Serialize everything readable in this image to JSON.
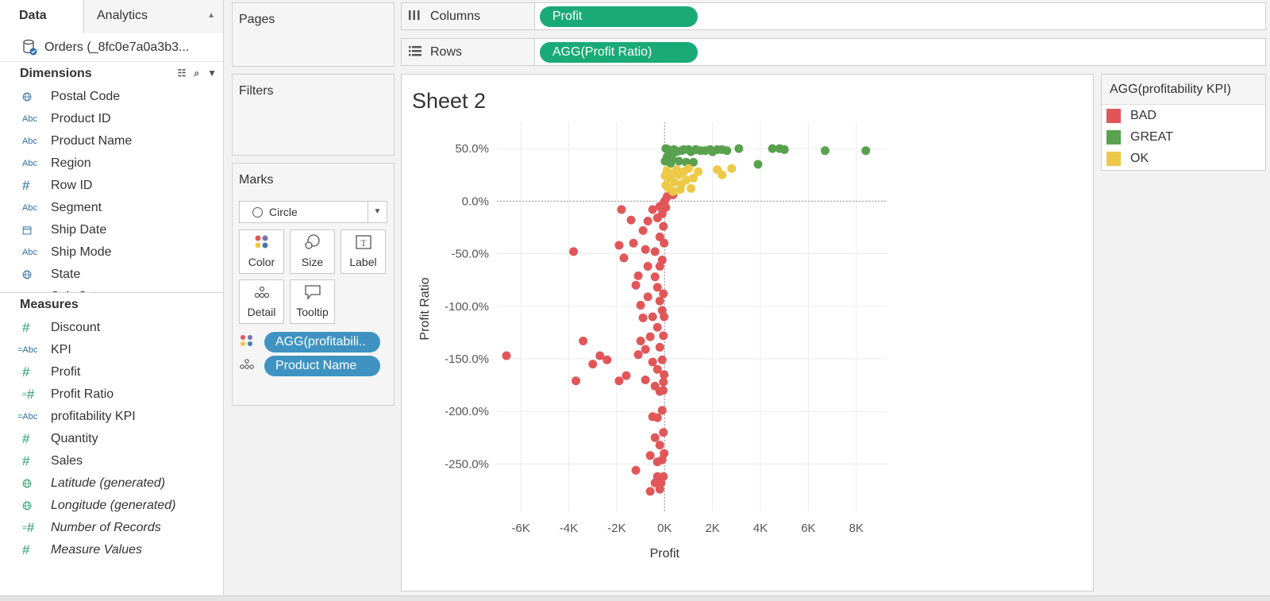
{
  "tabs": {
    "data": "Data",
    "analytics": "Analytics"
  },
  "datasource": {
    "name": "Orders (_8fc0e7a0a3b3..."
  },
  "dimensions": {
    "title": "Dimensions",
    "items": [
      {
        "label": "Postal Code",
        "icon": "globe-icon"
      },
      {
        "label": "Product ID",
        "icon": "abc-icon"
      },
      {
        "label": "Product Name",
        "icon": "abc-icon"
      },
      {
        "label": "Region",
        "icon": "abc-icon"
      },
      {
        "label": "Row ID",
        "icon": "hash-icon"
      },
      {
        "label": "Segment",
        "icon": "abc-icon"
      },
      {
        "label": "Ship Date",
        "icon": "calendar-icon"
      },
      {
        "label": "Ship Mode",
        "icon": "abc-icon"
      },
      {
        "label": "State",
        "icon": "globe-icon"
      },
      {
        "label": "Sub-Category",
        "icon": "abc-icon"
      }
    ]
  },
  "measures": {
    "title": "Measures",
    "items": [
      {
        "label": "Discount",
        "icon": "hash-icon"
      },
      {
        "label": "KPI",
        "icon": "calc-abc-icon"
      },
      {
        "label": "Profit",
        "icon": "hash-icon"
      },
      {
        "label": "Profit Ratio",
        "icon": "calc-hash-icon"
      },
      {
        "label": "profitability KPI",
        "icon": "calc-abc-icon"
      },
      {
        "label": "Quantity",
        "icon": "hash-icon"
      },
      {
        "label": "Sales",
        "icon": "hash-icon"
      },
      {
        "label": "Latitude (generated)",
        "icon": "globe-icon"
      },
      {
        "label": "Longitude (generated)",
        "icon": "globe-icon"
      },
      {
        "label": "Number of Records",
        "icon": "calc-hash-icon"
      },
      {
        "label": "Measure Values",
        "icon": "hash-icon"
      }
    ]
  },
  "shelves": {
    "pages": "Pages",
    "filters": "Filters",
    "marks": "Marks",
    "columns_label": "Columns",
    "rows_label": "Rows",
    "columns_pill": "Profit",
    "rows_pill": "AGG(Profit Ratio)"
  },
  "marks_card": {
    "type": "Circle",
    "buttons": {
      "color": "Color",
      "size": "Size",
      "label": "Label",
      "detail": "Detail",
      "tooltip": "Tooltip"
    },
    "color_pill": "AGG(profitabili..",
    "detail_pill": "Product Name"
  },
  "sheet": {
    "title": "Sheet 2"
  },
  "legend": {
    "title": "AGG(profitability KPI)",
    "items": [
      {
        "label": "BAD",
        "color": "#e15759"
      },
      {
        "label": "GREAT",
        "color": "#59a14f"
      },
      {
        "label": "OK",
        "color": "#edc948"
      }
    ]
  },
  "chart_data": {
    "type": "scatter",
    "xlabel": "Profit",
    "ylabel": "Profit Ratio",
    "x_ticks": [
      "-6K",
      "-4K",
      "-2K",
      "0K",
      "2K",
      "4K",
      "6K",
      "8K"
    ],
    "y_ticks": [
      "50.0%",
      "0.0%",
      "-50.0%",
      "-100.0%",
      "-150.0%",
      "-200.0%",
      "-250.0%"
    ],
    "xlim": [
      -7000,
      9300
    ],
    "ylim": [
      -295,
      75
    ],
    "grid": true,
    "series": [
      {
        "name": "BAD",
        "color": "#e15759",
        "points": [
          [
            -6600,
            -147
          ],
          [
            -3800,
            -48
          ],
          [
            -3700,
            -171
          ],
          [
            -3400,
            -133
          ],
          [
            -3000,
            -155
          ],
          [
            -2700,
            -147
          ],
          [
            -2400,
            -151
          ],
          [
            -1900,
            -171
          ],
          [
            -1800,
            -8
          ],
          [
            -1900,
            -42
          ],
          [
            -1700,
            -54
          ],
          [
            -1600,
            -166
          ],
          [
            -1400,
            -18
          ],
          [
            -1300,
            -40
          ],
          [
            -1200,
            -80
          ],
          [
            -1200,
            -256
          ],
          [
            -1100,
            -146
          ],
          [
            -1100,
            -71
          ],
          [
            -1000,
            -133
          ],
          [
            -1000,
            -99
          ],
          [
            -900,
            -111
          ],
          [
            -900,
            -28
          ],
          [
            -800,
            -46
          ],
          [
            -800,
            -141
          ],
          [
            -800,
            -170
          ],
          [
            -700,
            -91
          ],
          [
            -700,
            -19
          ],
          [
            -700,
            -62
          ],
          [
            -600,
            -129
          ],
          [
            -600,
            -242
          ],
          [
            -600,
            -276
          ],
          [
            -500,
            -153
          ],
          [
            -500,
            -8
          ],
          [
            -500,
            -110
          ],
          [
            -500,
            -205
          ],
          [
            -400,
            -176
          ],
          [
            -400,
            -48
          ],
          [
            -400,
            -225
          ],
          [
            -400,
            -268
          ],
          [
            -400,
            -72
          ],
          [
            -300,
            -16
          ],
          [
            -300,
            -82
          ],
          [
            -300,
            -120
          ],
          [
            -300,
            -160
          ],
          [
            -300,
            -206
          ],
          [
            -300,
            -248
          ],
          [
            -300,
            -262
          ],
          [
            -200,
            -5
          ],
          [
            -200,
            -34
          ],
          [
            -200,
            -62
          ],
          [
            -200,
            -95
          ],
          [
            -200,
            -139
          ],
          [
            -200,
            -181
          ],
          [
            -200,
            -232
          ],
          [
            -200,
            -274
          ],
          [
            -100,
            -12
          ],
          [
            -100,
            -56
          ],
          [
            -100,
            -104
          ],
          [
            -100,
            -151
          ],
          [
            -100,
            -199
          ],
          [
            -100,
            -246
          ],
          [
            -50,
            -24
          ],
          [
            -50,
            -88
          ],
          [
            -50,
            -128
          ],
          [
            -50,
            -172
          ],
          [
            -50,
            -220
          ],
          [
            -50,
            -262
          ],
          [
            -20,
            -40
          ],
          [
            -20,
            -110
          ],
          [
            -20,
            -165
          ],
          [
            -20,
            -240
          ],
          [
            0,
            0
          ],
          [
            50,
            -6
          ],
          [
            100,
            4
          ],
          [
            250,
            8
          ],
          [
            350,
            6
          ],
          [
            -30,
            -2
          ],
          [
            -80,
            -8
          ],
          [
            -60,
            -180
          ],
          [
            -150,
            -268
          ]
        ]
      },
      {
        "name": "GREAT",
        "color": "#59a14f",
        "points": [
          [
            8400,
            48
          ],
          [
            6700,
            48
          ],
          [
            5000,
            49
          ],
          [
            4800,
            50
          ],
          [
            4500,
            50
          ],
          [
            3900,
            35
          ],
          [
            3100,
            50
          ],
          [
            2600,
            48
          ],
          [
            2400,
            49
          ],
          [
            2200,
            49
          ],
          [
            2000,
            47
          ],
          [
            1900,
            49
          ],
          [
            1700,
            48
          ],
          [
            1500,
            48
          ],
          [
            1300,
            49
          ],
          [
            1200,
            37
          ],
          [
            1100,
            47
          ],
          [
            1000,
            49
          ],
          [
            900,
            37
          ],
          [
            800,
            49
          ],
          [
            700,
            48
          ],
          [
            600,
            38
          ],
          [
            500,
            47
          ],
          [
            400,
            49
          ],
          [
            300,
            41
          ],
          [
            200,
            48
          ],
          [
            100,
            42
          ],
          [
            50,
            50
          ],
          [
            20,
            38
          ],
          [
            150,
            49
          ],
          [
            250,
            36
          ]
        ]
      },
      {
        "name": "OK",
        "color": "#edc948",
        "points": [
          [
            2400,
            25
          ],
          [
            2200,
            30
          ],
          [
            2800,
            31
          ],
          [
            1100,
            12
          ],
          [
            1400,
            28
          ],
          [
            1200,
            22
          ],
          [
            1000,
            31
          ],
          [
            900,
            20
          ],
          [
            800,
            28
          ],
          [
            700,
            16
          ],
          [
            600,
            25
          ],
          [
            500,
            30
          ],
          [
            400,
            18
          ],
          [
            300,
            26
          ],
          [
            200,
            12
          ],
          [
            150,
            22
          ],
          [
            100,
            29
          ],
          [
            50,
            15
          ],
          [
            20,
            24
          ],
          [
            350,
            9
          ],
          [
            650,
            11
          ]
        ]
      }
    ]
  }
}
